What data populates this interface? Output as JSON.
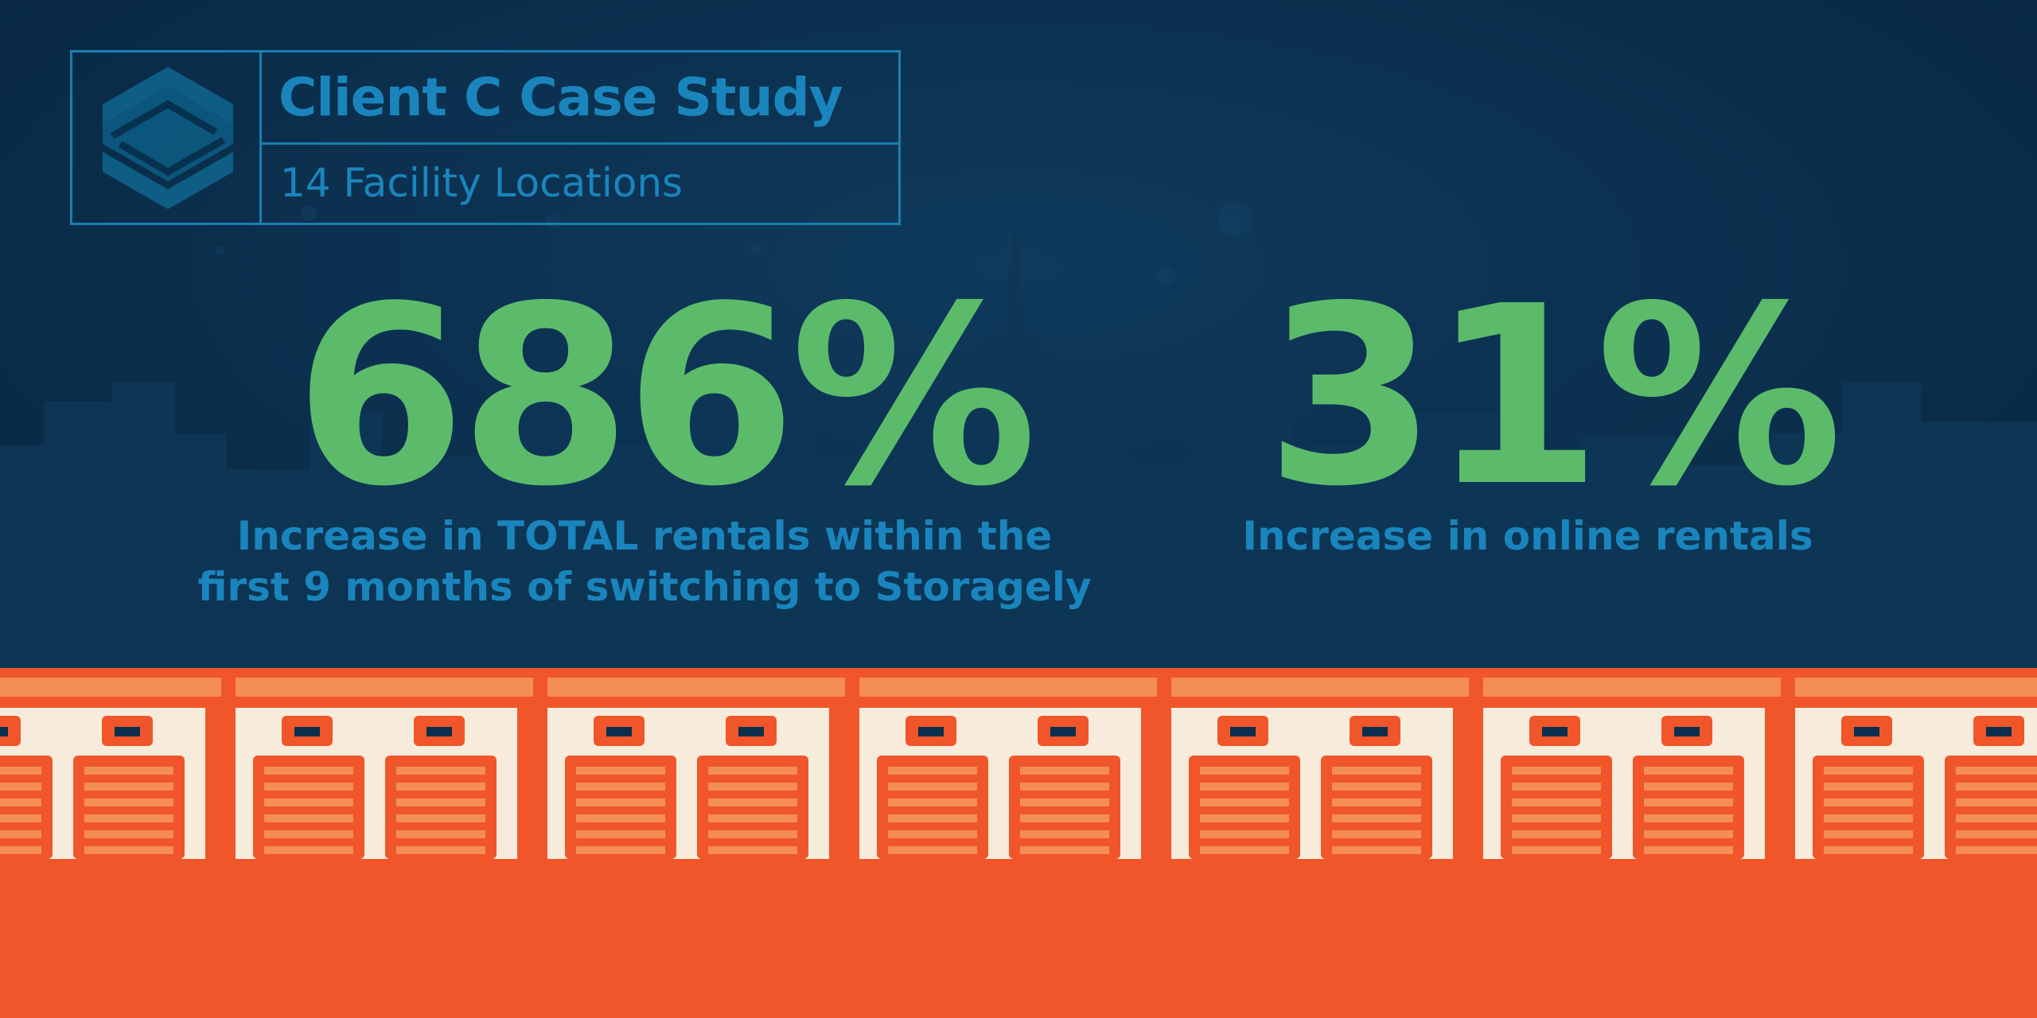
{
  "header": {
    "logo": "storagely-s-logo",
    "title": "Client C Case Study",
    "subtitle": "14 Facility Locations"
  },
  "stats": [
    {
      "value": "686%",
      "caption_line1": "Increase in TOTAL rentals within the",
      "caption_line2": "first 9 months of switching to Storagely"
    },
    {
      "value": "31%",
      "caption_line1": "Increase in online rentals"
    }
  ],
  "colors": {
    "background": "#0b2f4c",
    "accent_blue": "#1a85bd",
    "stat_green": "#5bbb6b",
    "storage_orange": "#f0562a",
    "door_cream": "#f7ecdc"
  }
}
